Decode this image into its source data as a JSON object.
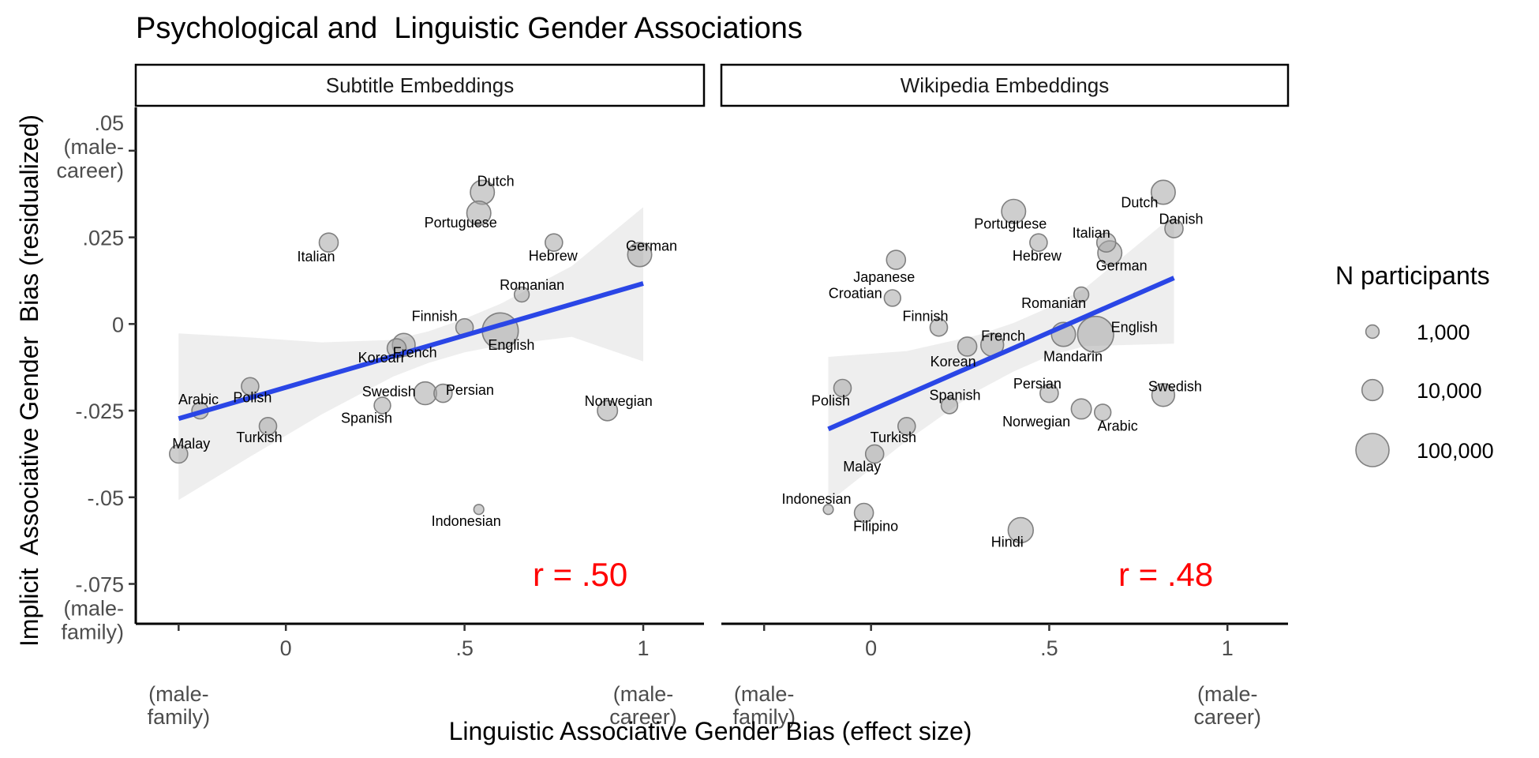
{
  "title": "Psychological and  Linguistic Gender Associations",
  "y_axis": {
    "label": "Implicit  Associative Gender  Bias (residualized)",
    "ticks": [
      {
        "value": 0.05,
        "lines": [
          ".05",
          "(male-",
          "career)"
        ]
      },
      {
        "value": 0.025,
        "lines": [
          ".025"
        ]
      },
      {
        "value": 0,
        "lines": [
          "0"
        ]
      },
      {
        "value": -0.025,
        "lines": [
          "-.025"
        ]
      },
      {
        "value": -0.05,
        "lines": [
          "-.05"
        ]
      },
      {
        "value": -0.075,
        "lines": [
          "-.075",
          "(male-",
          "family)"
        ]
      }
    ]
  },
  "x_axis": {
    "label": "Linguistic Associative Gender Bias (effect size)",
    "ticks": [
      {
        "value": -0.3,
        "lines": [
          "",
          "",
          "(male-",
          "family)"
        ]
      },
      {
        "value": 0,
        "lines": [
          "0"
        ]
      },
      {
        "value": 0.5,
        "lines": [
          ".5"
        ]
      },
      {
        "value": 1,
        "lines": [
          "1",
          "",
          "(male-",
          "career)"
        ]
      }
    ]
  },
  "legend": {
    "title": "N participants",
    "position": "right",
    "items": [
      {
        "label": "1,000",
        "n": 1000
      },
      {
        "label": "10,000",
        "n": 10000
      },
      {
        "label": "100,000",
        "n": 100000
      }
    ]
  },
  "colors": {
    "point_fill": "#a6a6a6",
    "point_stroke": "#808080",
    "fit_line": "#2a46e6",
    "ribbon": "#ebebeb",
    "r_text": "#ff0000",
    "strip_border": "#000000"
  },
  "chart_data": [
    {
      "type": "scatter",
      "panel": "Subtitle Embeddings",
      "xlim": [
        -0.42,
        1.17
      ],
      "ylim": [
        -0.0865,
        0.0625
      ],
      "r_label": "r = .50",
      "fit": {
        "x": [
          -0.3,
          1.0
        ],
        "y": [
          -0.0273,
          0.0117
        ]
      },
      "ci_band": {
        "x": [
          -0.3,
          -0.1,
          0.1,
          0.3,
          0.4,
          0.5,
          0.6,
          0.8,
          1.0
        ],
        "lower": [
          -0.0508,
          -0.0383,
          -0.0261,
          -0.0152,
          -0.0112,
          -0.0082,
          -0.0062,
          -0.0037,
          -0.0108
        ],
        "upper": [
          -0.0027,
          -0.0039,
          -0.0053,
          -0.0046,
          -0.0021,
          0.0015,
          0.0058,
          0.0167,
          0.0337
        ]
      },
      "points": [
        {
          "name": "Dutch",
          "x": 0.55,
          "y": 0.038,
          "n": 20000
        },
        {
          "name": "Portuguese",
          "x": 0.54,
          "y": 0.032,
          "n": 20000
        },
        {
          "name": "Italian",
          "x": 0.12,
          "y": 0.0235,
          "n": 6000
        },
        {
          "name": "Hebrew",
          "x": 0.75,
          "y": 0.0235,
          "n": 4000
        },
        {
          "name": "German",
          "x": 0.99,
          "y": 0.02,
          "n": 20000
        },
        {
          "name": "Romanian",
          "x": 0.66,
          "y": 0.0085,
          "n": 1800
        },
        {
          "name": "Finnish",
          "x": 0.5,
          "y": -0.001,
          "n": 4000
        },
        {
          "name": "English",
          "x": 0.6,
          "y": -0.002,
          "n": 150000
        },
        {
          "name": "French",
          "x": 0.33,
          "y": -0.006,
          "n": 15000
        },
        {
          "name": "Korean",
          "x": 0.31,
          "y": -0.007,
          "n": 6000
        },
        {
          "name": "Persian",
          "x": 0.44,
          "y": -0.02,
          "n": 5000
        },
        {
          "name": "Swedish",
          "x": 0.39,
          "y": -0.02,
          "n": 15000
        },
        {
          "name": "Spanish",
          "x": 0.27,
          "y": -0.0235,
          "n": 3000
        },
        {
          "name": "Polish",
          "x": -0.1,
          "y": -0.018,
          "n": 4000
        },
        {
          "name": "Arabic",
          "x": -0.24,
          "y": -0.025,
          "n": 3000
        },
        {
          "name": "Norwegian",
          "x": 0.9,
          "y": -0.025,
          "n": 8000
        },
        {
          "name": "Turkish",
          "x": -0.05,
          "y": -0.0295,
          "n": 4000
        },
        {
          "name": "Malay",
          "x": -0.3,
          "y": -0.0375,
          "n": 5000
        },
        {
          "name": "Indonesian",
          "x": 0.54,
          "y": -0.0535,
          "n": 250
        }
      ]
    },
    {
      "type": "scatter",
      "panel": "Wikipedia Embeddings",
      "xlim": [
        -0.42,
        1.17
      ],
      "ylim": [
        -0.0865,
        0.0625
      ],
      "r_label": "r = .48",
      "fit": {
        "x": [
          -0.12,
          0.85
        ],
        "y": [
          -0.0303,
          0.0133
        ]
      },
      "ci_band": {
        "x": [
          -0.12,
          0.1,
          0.3,
          0.4,
          0.5,
          0.6,
          0.85
        ],
        "lower": [
          -0.0515,
          -0.0337,
          -0.0192,
          -0.0137,
          -0.0092,
          -0.0064,
          -0.0057
        ],
        "upper": [
          -0.0095,
          -0.0078,
          -0.0032,
          0.0003,
          0.0048,
          0.0103,
          0.0315
        ]
      },
      "points": [
        {
          "name": "Dutch",
          "x": 0.82,
          "y": 0.038,
          "n": 20000
        },
        {
          "name": "Danish",
          "x": 0.85,
          "y": 0.0275,
          "n": 5000
        },
        {
          "name": "Portuguese",
          "x": 0.4,
          "y": 0.0325,
          "n": 20000
        },
        {
          "name": "Italian",
          "x": 0.66,
          "y": 0.0235,
          "n": 6000
        },
        {
          "name": "Hebrew",
          "x": 0.47,
          "y": 0.0235,
          "n": 4000
        },
        {
          "name": "German",
          "x": 0.67,
          "y": 0.0205,
          "n": 20000
        },
        {
          "name": "Japanese",
          "x": 0.07,
          "y": 0.0185,
          "n": 6000
        },
        {
          "name": "Croatian",
          "x": 0.06,
          "y": 0.0075,
          "n": 3000
        },
        {
          "name": "Romanian",
          "x": 0.59,
          "y": 0.0085,
          "n": 1800
        },
        {
          "name": "Finnish",
          "x": 0.19,
          "y": -0.001,
          "n": 4000
        },
        {
          "name": "English",
          "x": 0.63,
          "y": -0.003,
          "n": 150000
        },
        {
          "name": "Mandarin",
          "x": 0.54,
          "y": -0.003,
          "n": 20000
        },
        {
          "name": "French",
          "x": 0.34,
          "y": -0.006,
          "n": 15000
        },
        {
          "name": "Korean",
          "x": 0.27,
          "y": -0.0065,
          "n": 6000
        },
        {
          "name": "Persian",
          "x": 0.5,
          "y": -0.02,
          "n": 5000
        },
        {
          "name": "Swedish",
          "x": 0.82,
          "y": -0.0205,
          "n": 15000
        },
        {
          "name": "Spanish",
          "x": 0.22,
          "y": -0.0235,
          "n": 3000
        },
        {
          "name": "Norwegian",
          "x": 0.59,
          "y": -0.0245,
          "n": 8000
        },
        {
          "name": "Arabic",
          "x": 0.65,
          "y": -0.0255,
          "n": 3000
        },
        {
          "name": "Polish",
          "x": -0.08,
          "y": -0.0185,
          "n": 4000
        },
        {
          "name": "Turkish",
          "x": 0.1,
          "y": -0.0295,
          "n": 4000
        },
        {
          "name": "Malay",
          "x": 0.01,
          "y": -0.0375,
          "n": 5000
        },
        {
          "name": "Indonesian",
          "x": -0.12,
          "y": -0.0535,
          "n": 250
        },
        {
          "name": "Filipino",
          "x": -0.02,
          "y": -0.0545,
          "n": 6000
        },
        {
          "name": "Hindi",
          "x": 0.42,
          "y": -0.0595,
          "n": 25000
        }
      ]
    }
  ]
}
